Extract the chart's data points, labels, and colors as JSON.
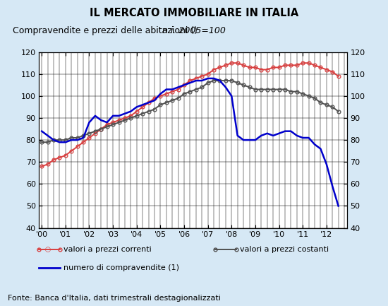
{
  "title": "IL MERCATO IMMOBILIARE IN ITALIA",
  "subtitle_plain": "Compravendite e prezzi delle abitazioni (",
  "subtitle_italic": "n.i. 2005=100",
  "subtitle_end": ")",
  "footnote": "Fonte: Banca d'Italia, dati trimestrali destagionalizzati",
  "bg_color": "#d6e8f5",
  "plot_bg_color": "#ffffff",
  "ylim": [
    40,
    120
  ],
  "yticks": [
    40,
    50,
    60,
    70,
    80,
    90,
    100,
    110,
    120
  ],
  "xlim_start": 1999.875,
  "xlim_end": 2012.875,
  "xtick_labels": [
    "'00",
    "'01",
    "'02",
    "'03",
    "'04",
    "'05",
    "'06",
    "'07",
    "'08",
    "'09",
    "'10",
    "'11",
    "'12"
  ],
  "xtick_positions": [
    2000,
    2001,
    2002,
    2003,
    2004,
    2005,
    2006,
    2007,
    2008,
    2009,
    2010,
    2011,
    2012
  ],
  "prezzi_correnti_x": [
    2000.0,
    2000.25,
    2000.5,
    2000.75,
    2001.0,
    2001.25,
    2001.5,
    2001.75,
    2002.0,
    2002.25,
    2002.5,
    2002.75,
    2003.0,
    2003.25,
    2003.5,
    2003.75,
    2004.0,
    2004.25,
    2004.5,
    2004.75,
    2005.0,
    2005.25,
    2005.5,
    2005.75,
    2006.0,
    2006.25,
    2006.5,
    2006.75,
    2007.0,
    2007.25,
    2007.5,
    2007.75,
    2008.0,
    2008.25,
    2008.5,
    2008.75,
    2009.0,
    2009.25,
    2009.5,
    2009.75,
    2010.0,
    2010.25,
    2010.5,
    2010.75,
    2011.0,
    2011.25,
    2011.5,
    2011.75,
    2012.0,
    2012.25,
    2012.5
  ],
  "prezzi_correnti_y": [
    68,
    69,
    71,
    72,
    73,
    75,
    77,
    79,
    81,
    83,
    85,
    87,
    88,
    89,
    90,
    91,
    93,
    95,
    97,
    99,
    100,
    101,
    102,
    103,
    105,
    107,
    108,
    109,
    110,
    112,
    113,
    114,
    115,
    115,
    114,
    113,
    113,
    112,
    112,
    113,
    113,
    114,
    114,
    114,
    115,
    115,
    114,
    113,
    112,
    111,
    109
  ],
  "prezzi_costanti_x": [
    2000.0,
    2000.25,
    2000.5,
    2000.75,
    2001.0,
    2001.25,
    2001.5,
    2001.75,
    2002.0,
    2002.25,
    2002.5,
    2002.75,
    2003.0,
    2003.25,
    2003.5,
    2003.75,
    2004.0,
    2004.25,
    2004.5,
    2004.75,
    2005.0,
    2005.25,
    2005.5,
    2005.75,
    2006.0,
    2006.25,
    2006.5,
    2006.75,
    2007.0,
    2007.25,
    2007.5,
    2007.75,
    2008.0,
    2008.25,
    2008.5,
    2008.75,
    2009.0,
    2009.25,
    2009.5,
    2009.75,
    2010.0,
    2010.25,
    2010.5,
    2010.75,
    2011.0,
    2011.25,
    2011.5,
    2011.75,
    2012.0,
    2012.25,
    2012.5
  ],
  "prezzi_costanti_y": [
    79,
    79,
    80,
    80,
    80,
    81,
    81,
    82,
    83,
    84,
    85,
    86,
    87,
    88,
    89,
    90,
    91,
    92,
    93,
    94,
    96,
    97,
    98,
    99,
    101,
    102,
    103,
    104,
    106,
    107,
    107,
    107,
    107,
    106,
    105,
    104,
    103,
    103,
    103,
    103,
    103,
    103,
    102,
    102,
    101,
    100,
    99,
    97,
    96,
    95,
    93
  ],
  "compravendite_x": [
    2000.0,
    2000.25,
    2000.5,
    2000.75,
    2001.0,
    2001.25,
    2001.5,
    2001.75,
    2002.0,
    2002.25,
    2002.5,
    2002.75,
    2003.0,
    2003.25,
    2003.5,
    2003.75,
    2004.0,
    2004.25,
    2004.5,
    2004.75,
    2005.0,
    2005.25,
    2005.5,
    2005.75,
    2006.0,
    2006.25,
    2006.5,
    2006.75,
    2007.0,
    2007.25,
    2007.5,
    2007.75,
    2008.0,
    2008.25,
    2008.5,
    2008.75,
    2009.0,
    2009.25,
    2009.5,
    2009.75,
    2010.0,
    2010.25,
    2010.5,
    2010.75,
    2011.0,
    2011.25,
    2011.5,
    2011.75,
    2012.0,
    2012.25,
    2012.5
  ],
  "compravendite_y": [
    84,
    82,
    80,
    79,
    79,
    80,
    80,
    81,
    88,
    91,
    89,
    88,
    91,
    91,
    92,
    93,
    95,
    96,
    97,
    98,
    101,
    103,
    103,
    104,
    105,
    106,
    107,
    107,
    108,
    108,
    107,
    104,
    100,
    82,
    80,
    80,
    80,
    82,
    83,
    82,
    83,
    84,
    84,
    82,
    81,
    81,
    78,
    76,
    69,
    59,
    50
  ],
  "color_correnti": "#d94040",
  "color_costanti": "#505050",
  "color_compravendite": "#0000cc",
  "linewidth_prices": 1.4,
  "linewidth_sales": 1.8,
  "markersize": 3.5,
  "legend1_label": "valori a prezzi correnti",
  "legend2_label": "valori a prezzi costanti",
  "legend3_label": "numero di compravendite (1)"
}
